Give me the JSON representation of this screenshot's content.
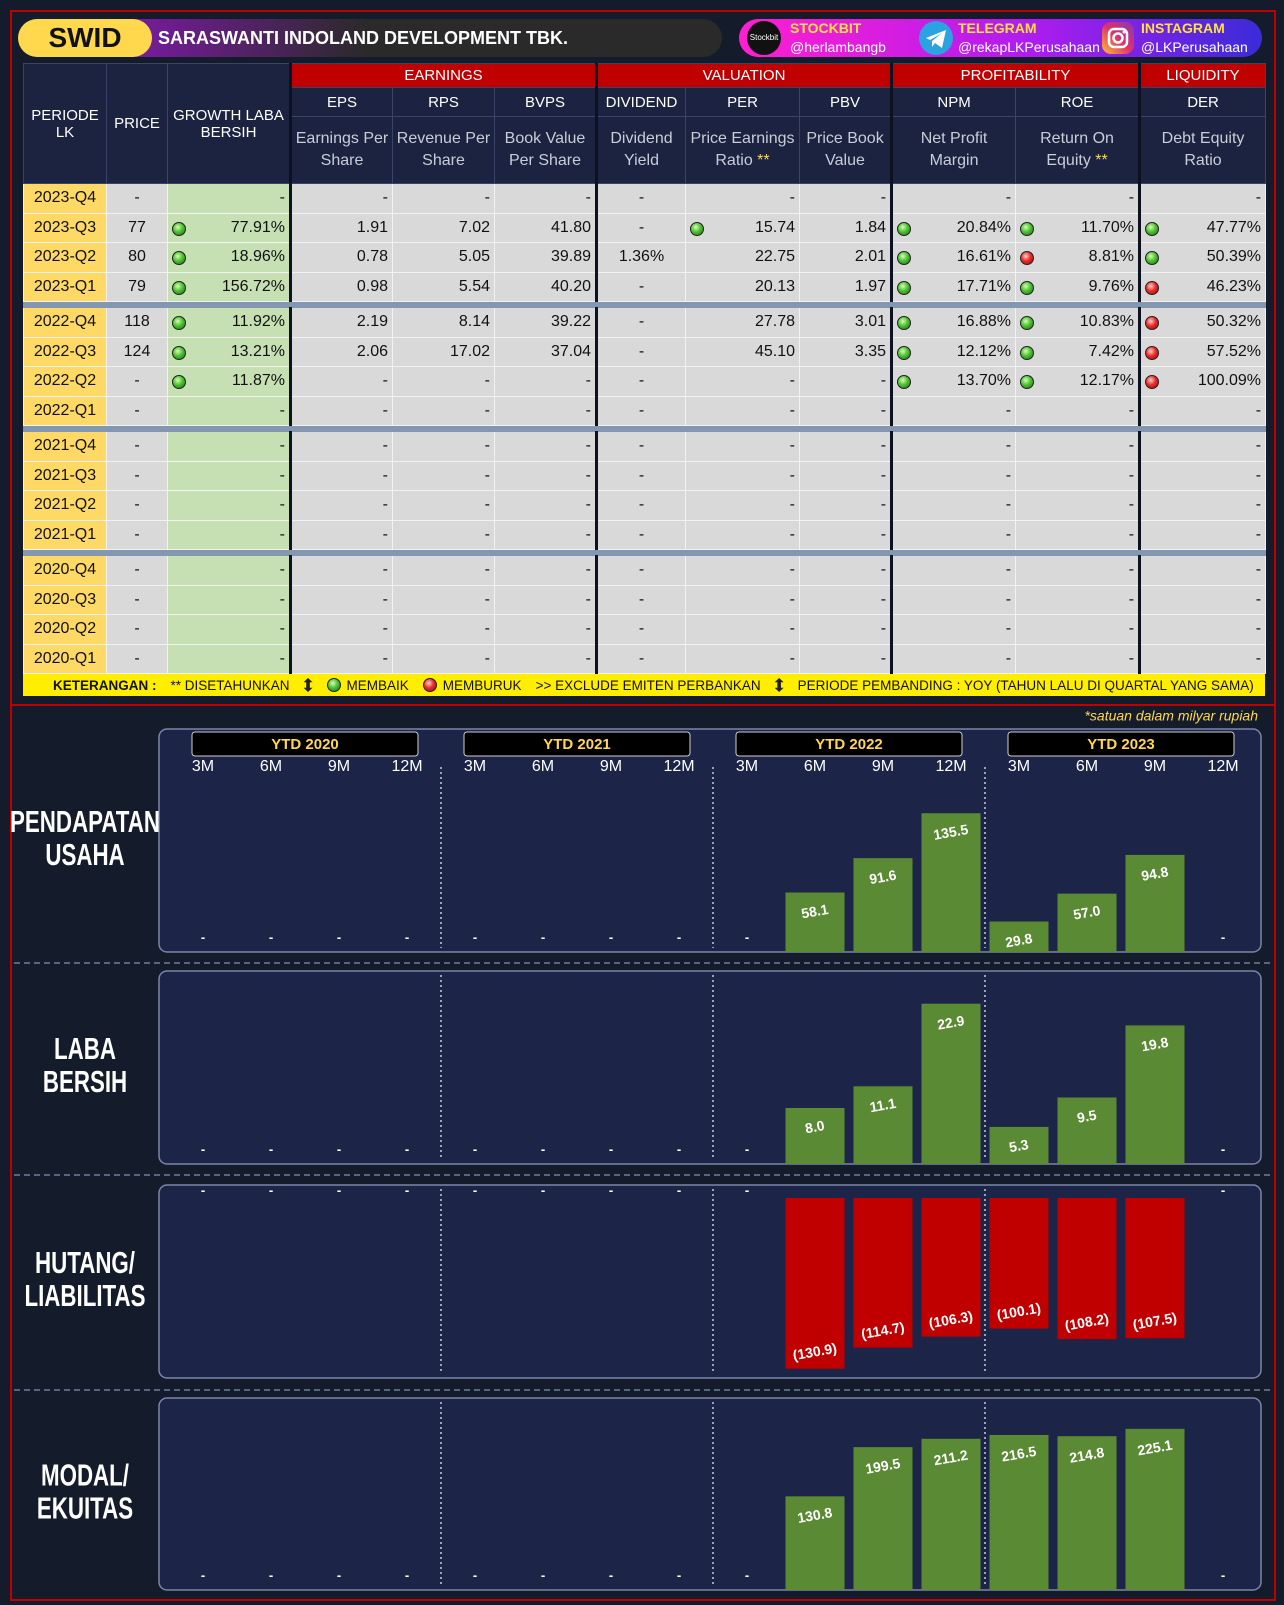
{
  "header": {
    "ticker": "SWID",
    "company": "SARASWANTI INDOLAND DEVELOPMENT  TBK.",
    "socials": [
      {
        "logo": "Stockbit",
        "platform": "STOCKBIT",
        "handle": "@herlambangb"
      },
      {
        "platform": "TELEGRAM",
        "handle": "@rekapLKPerusahaan"
      },
      {
        "platform": "INSTAGRAM",
        "handle": "@LKPerusahaan"
      }
    ]
  },
  "table": {
    "fixed_columns": [
      "PERIODE LK",
      "PRICE",
      "GROWTH LABA BERSIH"
    ],
    "groups": [
      {
        "name": "EARNINGS",
        "columns": [
          {
            "code": "EPS",
            "desc": "Earnings Per Share"
          },
          {
            "code": "RPS",
            "desc": "Revenue Per Share"
          },
          {
            "code": "BVPS",
            "desc": "Book Value Per Share"
          }
        ]
      },
      {
        "name": "VALUATION",
        "columns": [
          {
            "code": "DIVIDEND",
            "desc": "Dividend Yield"
          },
          {
            "code": "PER",
            "desc": "Price Earnings Ratio",
            "note": "**"
          },
          {
            "code": "PBV",
            "desc": "Price Book Value"
          }
        ]
      },
      {
        "name": "PROFITABILITY",
        "columns": [
          {
            "code": "NPM",
            "desc": "Net Profit Margin"
          },
          {
            "code": "ROE",
            "desc": "Return On Equity",
            "note": "**"
          }
        ]
      },
      {
        "name": "LIQUIDITY",
        "columns": [
          {
            "code": "DER",
            "desc": "Debt Equity Ratio"
          }
        ]
      }
    ],
    "rows": [
      {
        "cells": [
          "2023-Q4",
          "-",
          "-",
          "-",
          "-",
          "-",
          "-",
          "-",
          "-",
          "-",
          "-",
          "-"
        ],
        "dots": {}
      },
      {
        "cells": [
          "2023-Q3",
          "77",
          "77.91%",
          "1.91",
          "7.02",
          "41.80",
          "-",
          "15.74",
          "1.84",
          "20.84%",
          "11.70%",
          "47.77%"
        ],
        "dots": {
          "2": "green",
          "7": "green",
          "9": "green",
          "10": "green",
          "11": "green"
        }
      },
      {
        "cells": [
          "2023-Q2",
          "80",
          "18.96%",
          "0.78",
          "5.05",
          "39.89",
          "1.36%",
          "22.75",
          "2.01",
          "16.61%",
          "8.81%",
          "50.39%"
        ],
        "dots": {
          "2": "green",
          "9": "green",
          "10": "red",
          "11": "green"
        }
      },
      {
        "cells": [
          "2023-Q1",
          "79",
          "156.72%",
          "0.98",
          "5.54",
          "40.20",
          "-",
          "20.13",
          "1.97",
          "17.71%",
          "9.76%",
          "46.23%"
        ],
        "dots": {
          "2": "green",
          "9": "green",
          "10": "green",
          "11": "red"
        }
      },
      {
        "cells": [
          "2022-Q4",
          "118",
          "11.92%",
          "2.19",
          "8.14",
          "39.22",
          "-",
          "27.78",
          "3.01",
          "16.88%",
          "10.83%",
          "50.32%"
        ],
        "dots": {
          "2": "green",
          "9": "green",
          "10": "green",
          "11": "red"
        }
      },
      {
        "cells": [
          "2022-Q3",
          "124",
          "13.21%",
          "2.06",
          "17.02",
          "37.04",
          "-",
          "45.10",
          "3.35",
          "12.12%",
          "7.42%",
          "57.52%"
        ],
        "dots": {
          "2": "green",
          "9": "green",
          "10": "green",
          "11": "red"
        }
      },
      {
        "cells": [
          "2022-Q2",
          "-",
          "11.87%",
          "-",
          "-",
          "-",
          "-",
          "-",
          "-",
          "13.70%",
          "12.17%",
          "100.09%"
        ],
        "dots": {
          "2": "green",
          "9": "green",
          "10": "green",
          "11": "red"
        }
      },
      {
        "cells": [
          "2022-Q1",
          "-",
          "-",
          "-",
          "-",
          "-",
          "-",
          "-",
          "-",
          "-",
          "-",
          "-"
        ],
        "dots": {}
      },
      {
        "cells": [
          "2021-Q4",
          "-",
          "-",
          "-",
          "-",
          "-",
          "-",
          "-",
          "-",
          "-",
          "-",
          "-"
        ],
        "dots": {}
      },
      {
        "cells": [
          "2021-Q3",
          "-",
          "-",
          "-",
          "-",
          "-",
          "-",
          "-",
          "-",
          "-",
          "-",
          "-"
        ],
        "dots": {}
      },
      {
        "cells": [
          "2021-Q2",
          "-",
          "-",
          "-",
          "-",
          "-",
          "-",
          "-",
          "-",
          "-",
          "-",
          "-"
        ],
        "dots": {}
      },
      {
        "cells": [
          "2021-Q1",
          "-",
          "-",
          "-",
          "-",
          "-",
          "-",
          "-",
          "-",
          "-",
          "-",
          "-"
        ],
        "dots": {}
      },
      {
        "cells": [
          "2020-Q4",
          "-",
          "-",
          "-",
          "-",
          "-",
          "-",
          "-",
          "-",
          "-",
          "-",
          "-"
        ],
        "dots": {}
      },
      {
        "cells": [
          "2020-Q3",
          "-",
          "-",
          "-",
          "-",
          "-",
          "-",
          "-",
          "-",
          "-",
          "-",
          "-"
        ],
        "dots": {}
      },
      {
        "cells": [
          "2020-Q2",
          "-",
          "-",
          "-",
          "-",
          "-",
          "-",
          "-",
          "-",
          "-",
          "-",
          "-"
        ],
        "dots": {}
      },
      {
        "cells": [
          "2020-Q1",
          "-",
          "-",
          "-",
          "-",
          "-",
          "-",
          "-",
          "-",
          "-",
          "-",
          "-"
        ],
        "dots": {}
      }
    ]
  },
  "legend": {
    "label": "KETERANGAN :",
    "annualized": "** DISETAHUNKAN",
    "better": "MEMBAIK",
    "worse": "MEMBURUK",
    "exclude": ">> EXCLUDE EMITEN PERBANKAN",
    "comparison": "PERIODE PEMBANDING : YOY (TAHUN LALU DI QUARTAL YANG SAMA)"
  },
  "unit_note": "*satuan dalam milyar rupiah",
  "chart_data": [
    {
      "type": "bar",
      "title": [
        "PENDAPATAN",
        "USAHA"
      ],
      "groups": [
        "YTD 2020",
        "YTD 2021",
        "YTD 2022",
        "YTD 2023"
      ],
      "categories": [
        "3M",
        "6M",
        "9M",
        "12M",
        "3M",
        "6M",
        "9M",
        "12M",
        "3M",
        "6M",
        "9M",
        "12M",
        "3M",
        "6M",
        "9M",
        "12M"
      ],
      "values": [
        null,
        null,
        null,
        null,
        null,
        null,
        null,
        null,
        null,
        58.1,
        91.6,
        135.5,
        29.8,
        57.0,
        94.8,
        null
      ],
      "value_labels": [
        "-",
        "-",
        "-",
        "-",
        "-",
        "-",
        "-",
        "-",
        "-",
        "58.1",
        "91.6",
        "135.5",
        "29.8",
        "57.0",
        "94.8",
        "-"
      ],
      "color": "#5a8a33",
      "ylim": [
        0,
        165
      ]
    },
    {
      "type": "bar",
      "title": [
        "LABA",
        "BERSIH"
      ],
      "values": [
        null,
        null,
        null,
        null,
        null,
        null,
        null,
        null,
        null,
        8.0,
        11.1,
        22.9,
        5.3,
        9.5,
        19.8,
        null
      ],
      "value_labels": [
        "-",
        "-",
        "-",
        "-",
        "-",
        "-",
        "-",
        "-",
        "-",
        "8.0",
        "11.1",
        "22.9",
        "5.3",
        "9.5",
        "19.8",
        "-"
      ],
      "color": "#5a8a33",
      "ylim": [
        0,
        26
      ]
    },
    {
      "type": "bar",
      "title": [
        "HUTANG/",
        "LIABILITAS"
      ],
      "values": [
        null,
        null,
        null,
        null,
        null,
        null,
        null,
        null,
        null,
        -130.9,
        -114.7,
        -106.3,
        -100.1,
        -108.2,
        -107.5,
        null
      ],
      "value_labels": [
        "-",
        "-",
        "-",
        "-",
        "-",
        "-",
        "-",
        "-",
        "-",
        "(130.9)",
        "(114.7)",
        "(106.3)",
        "(100.1)",
        "(108.2)",
        "(107.5)",
        "-"
      ],
      "color": "#c00000",
      "ylim": [
        -138,
        0
      ]
    },
    {
      "type": "bar",
      "title": [
        "MODAL/",
        "EKUITAS"
      ],
      "values": [
        null,
        null,
        null,
        null,
        null,
        null,
        null,
        null,
        null,
        130.8,
        199.5,
        211.2,
        216.5,
        214.8,
        225.1,
        null
      ],
      "value_labels": [
        "-",
        "-",
        "-",
        "-",
        "-",
        "-",
        "-",
        "-",
        "-",
        "130.8",
        "199.5",
        "211.2",
        "216.5",
        "214.8",
        "225.1",
        "-"
      ],
      "color": "#5a8a33",
      "ylim": [
        0,
        250
      ]
    }
  ]
}
